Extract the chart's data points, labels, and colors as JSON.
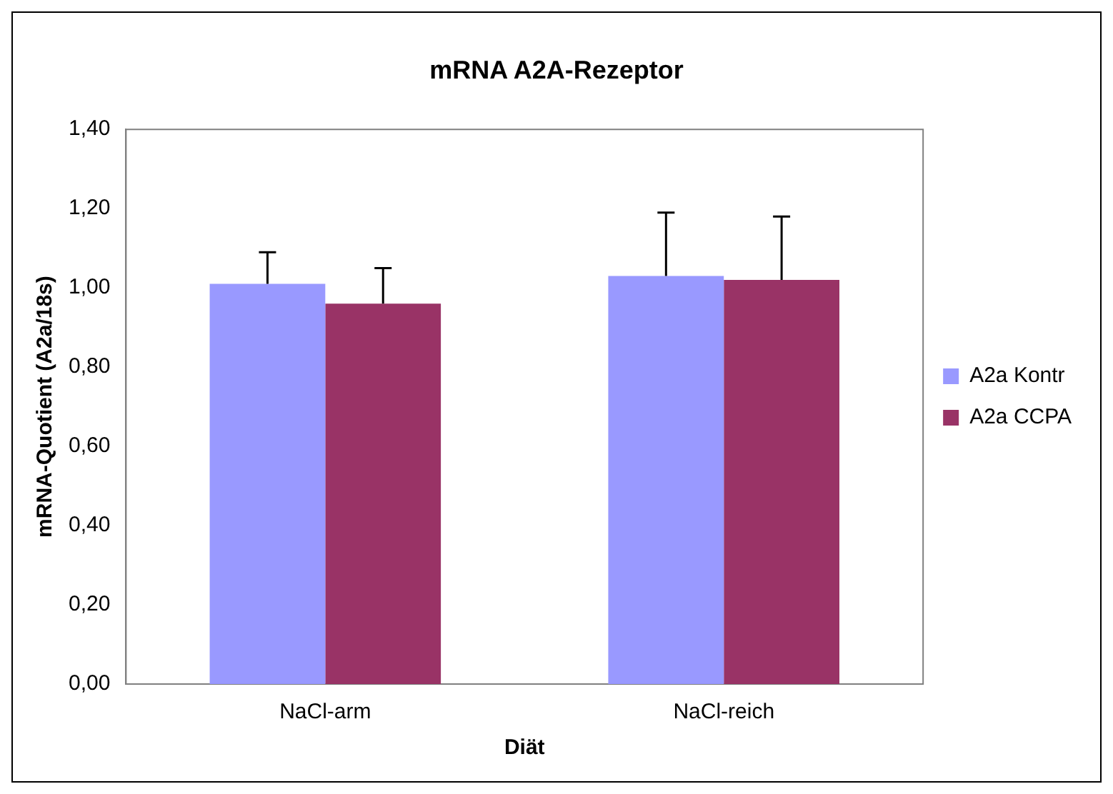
{
  "chart_data": {
    "type": "bar",
    "title": "mRNA A2A-Rezeptor",
    "xlabel": "Diät",
    "ylabel": "mRNA-Quotient (A2a/18s)",
    "categories": [
      "NaCl-arm",
      "NaCl-reich"
    ],
    "series": [
      {
        "name": "A2a Kontr",
        "color": "#9999ff",
        "values": [
          1.01,
          1.03
        ],
        "errors": [
          [
            1.01,
            1.09
          ],
          [
            1.03,
            1.19
          ]
        ]
      },
      {
        "name": "A2a CCPA",
        "color": "#993366",
        "values": [
          0.96,
          1.02
        ],
        "errors": [
          [
            0.96,
            1.05
          ],
          [
            1.02,
            1.18
          ]
        ]
      }
    ],
    "ylim": [
      0,
      1.4
    ],
    "yticks": [
      {
        "value": 0,
        "label": "0,00"
      },
      {
        "value": 0.2,
        "label": "0,20"
      },
      {
        "value": 0.4,
        "label": "0,40"
      },
      {
        "value": 0.6,
        "label": "0,60"
      },
      {
        "value": 0.8,
        "label": "0,80"
      },
      {
        "value": 1,
        "label": "1,00"
      },
      {
        "value": 1.2,
        "label": "1,20"
      },
      {
        "value": 1.4,
        "label": "1,40"
      }
    ],
    "grid": false,
    "legend": "right"
  }
}
